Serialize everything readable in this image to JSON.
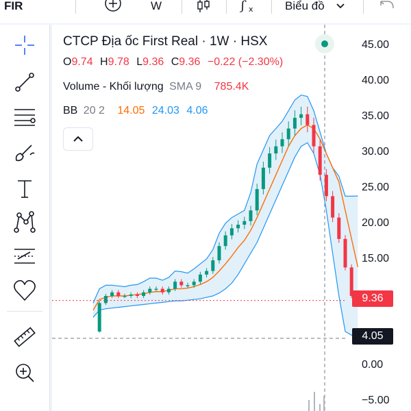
{
  "topbar": {
    "symbol": "FIR",
    "add_label": "+",
    "interval": "W",
    "chart_type_label": "Biểu đồ",
    "undo_icon": "undo-icon"
  },
  "toolbar": {
    "tools": [
      "crosshair-icon",
      "trend-line-icon",
      "horizontal-lines-icon",
      "brush-icon",
      "text-icon",
      "pattern-icon",
      "forecast-icon",
      "heart-icon",
      "ruler-icon",
      "zoom-in-icon"
    ]
  },
  "legend": {
    "title": "CTCP Địa ốc First Real · 1W · HSX",
    "ohlc": [
      {
        "k": "O",
        "v": "9.74"
      },
      {
        "k": "H",
        "v": "9.78"
      },
      {
        "k": "L",
        "v": "9.36"
      },
      {
        "k": "C",
        "v": "9.36"
      }
    ],
    "change": "−0.22 (−2.30%)",
    "volume_label": "Volume - Khối lượng",
    "volume_sma": "SMA 9",
    "volume_value": "785.4K",
    "bb_label": "BB",
    "bb_params": "20 2",
    "bb_basis": "14.05",
    "bb_upper": "24.03",
    "bb_lower": "4.06"
  },
  "price_axis": {
    "ticks": [
      "45.00",
      "40.00",
      "35.00",
      "30.00",
      "25.00",
      "20.00",
      "15.00",
      "0.00",
      "−5.00"
    ],
    "last_price": "9.36",
    "crosshair_price": "4.05"
  },
  "colors": {
    "up": "#089981",
    "down": "#f23645",
    "bb_basis": "#ff6d00",
    "bb_band": "#2196f3",
    "bb_fill": "#d6eaf8",
    "accent": "#2962ff"
  },
  "chart_data": {
    "type": "line",
    "title": "CTCP Địa ốc First Real · 1W · HSX",
    "x": [
      0,
      4,
      8,
      12,
      16,
      20,
      24,
      28,
      32,
      36,
      40,
      44,
      48,
      52,
      56,
      60,
      64,
      68,
      72,
      76,
      80,
      84,
      88,
      92,
      96,
      100,
      104,
      108,
      112,
      116,
      120,
      124,
      128,
      132,
      136,
      140,
      144,
      148,
      152,
      156,
      160,
      164,
      168
    ],
    "series": [
      {
        "name": "Close",
        "values": [
          5,
          9,
          10,
          10.5,
          10,
          10,
          10.2,
          10,
          10.5,
          11,
          11,
          10.5,
          11,
          12,
          11.5,
          11.5,
          12,
          13,
          13.5,
          15,
          17,
          18.5,
          19.5,
          20,
          20.5,
          22,
          25,
          28,
          30,
          31,
          32,
          33.5,
          35,
          35.5,
          34,
          31,
          27,
          24,
          21,
          18,
          14,
          10,
          9.36
        ]
      },
      {
        "name": "BB Upper",
        "values": [
          9,
          11,
          11.5,
          11.5,
          11.4,
          11.3,
          11.5,
          11.6,
          12,
          12.5,
          12.5,
          12.2,
          12.6,
          13.5,
          13.4,
          13.2,
          13.8,
          14.5,
          15.2,
          16.5,
          18.8,
          20.2,
          21,
          21.5,
          22,
          24.5,
          28.5,
          30.5,
          32.5,
          33.5,
          34.5,
          36,
          37.5,
          38.2,
          38,
          36,
          33,
          30,
          28,
          26.8,
          24,
          24,
          24.03
        ]
      },
      {
        "name": "BB Basis",
        "values": [
          8,
          9.5,
          9.8,
          10,
          10,
          10,
          10.1,
          10.2,
          10.3,
          10.5,
          10.6,
          10.6,
          10.8,
          11,
          11,
          11.1,
          11.3,
          11.6,
          12,
          12.6,
          13.5,
          14.5,
          15.6,
          16.8,
          17.8,
          19.2,
          21,
          23,
          25,
          27,
          29,
          31,
          32.5,
          33.5,
          34,
          33.5,
          32,
          30,
          28,
          26,
          22,
          18,
          14.05
        ]
      },
      {
        "name": "BB Lower",
        "values": [
          7,
          8,
          8.2,
          8.3,
          8.4,
          8.5,
          8.6,
          8.7,
          8.8,
          8.9,
          9,
          9.1,
          9.2,
          9.3,
          9.3,
          9.4,
          9.5,
          9.6,
          9.8,
          10,
          10.4,
          11,
          11.8,
          13,
          14.5,
          16,
          17.5,
          19.5,
          21.5,
          23.5,
          25.5,
          27.5,
          29.5,
          31,
          31.5,
          30,
          27,
          22,
          16,
          10,
          5,
          4.5,
          4.06
        ]
      }
    ],
    "ylim": [
      -7,
      48
    ],
    "y_ticks": [
      45,
      40,
      35,
      30,
      25,
      20,
      15,
      0,
      -5
    ],
    "last_close": 9.36,
    "crosshair_y": 4.05
  }
}
